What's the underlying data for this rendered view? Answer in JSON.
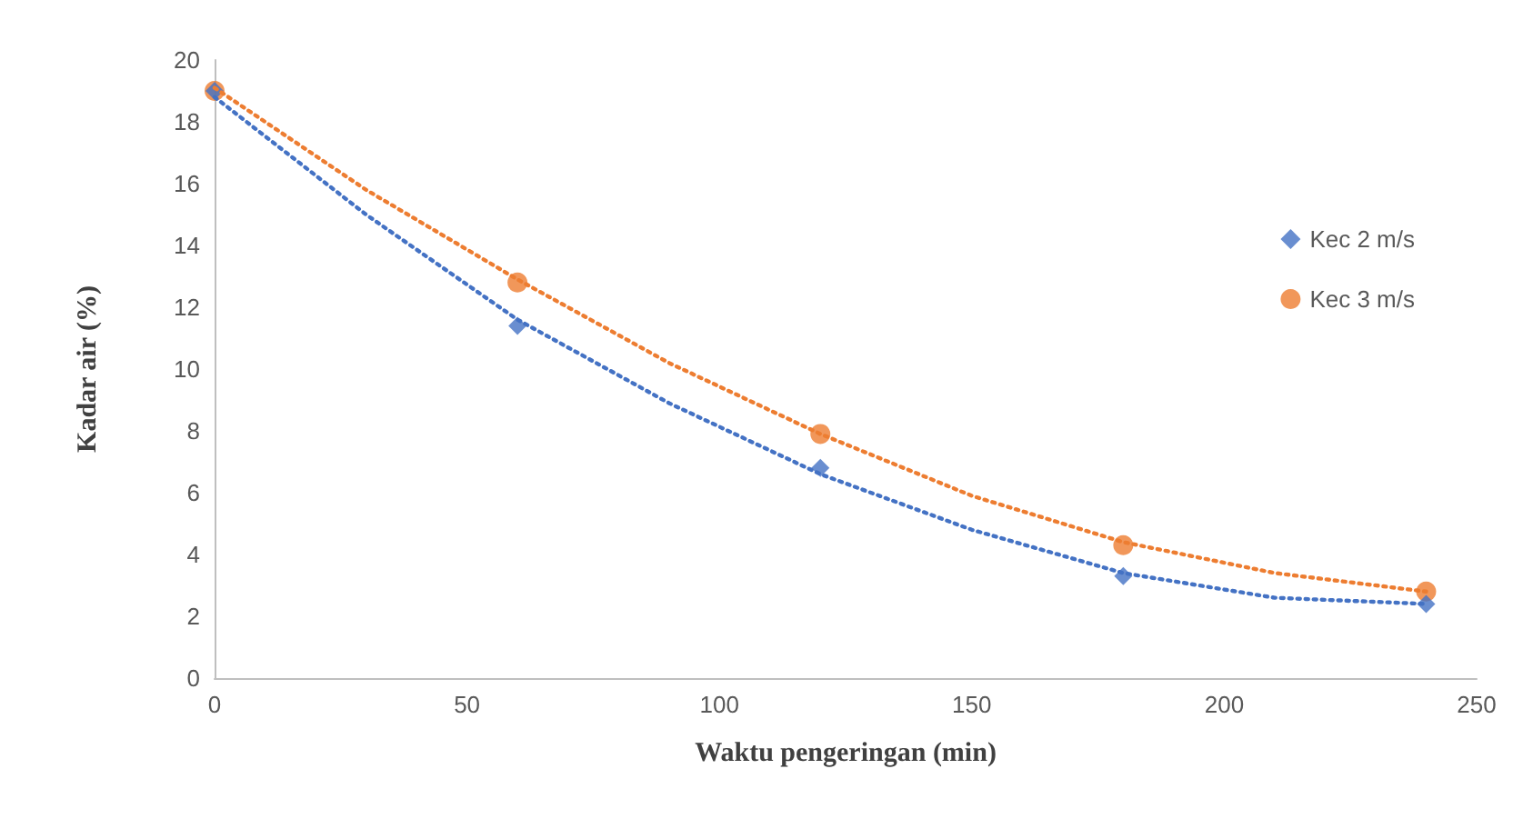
{
  "chart_data": {
    "type": "scatter",
    "xlabel": "Waktu pengeringan (min)",
    "ylabel": "Kadar air (%)",
    "xlim": [
      0,
      250
    ],
    "xticks": [
      0,
      50,
      100,
      150,
      200,
      250
    ],
    "ylim": [
      0,
      20
    ],
    "yticks": [
      0,
      2,
      4,
      6,
      8,
      10,
      12,
      14,
      16,
      18,
      20
    ],
    "grid": false,
    "legend": "right",
    "series": [
      {
        "name": "Kec 2 m/s",
        "color": "#4472c4",
        "marker": "diamond",
        "x": [
          0,
          60,
          120,
          180,
          240
        ],
        "values": [
          19,
          11.4,
          6.8,
          3.3,
          2.4
        ]
      },
      {
        "name": "Kec 3 m/s",
        "color": "#ed7d31",
        "marker": "circle",
        "x": [
          0,
          60,
          120,
          180,
          240
        ],
        "values": [
          19,
          12.8,
          7.9,
          4.3,
          2.8
        ]
      },
      {
        "type": "line",
        "color": "#4472c4",
        "marker": "none",
        "line_style": "dotted",
        "x": [
          0,
          30,
          60,
          90,
          120,
          150,
          180,
          210,
          240
        ],
        "values": [
          18.8,
          15.0,
          11.6,
          8.9,
          6.6,
          4.8,
          3.4,
          2.6,
          2.4
        ]
      },
      {
        "type": "line",
        "color": "#ed7d31",
        "marker": "none",
        "line_style": "dotted",
        "x": [
          0,
          30,
          60,
          90,
          120,
          150,
          180,
          210,
          240
        ],
        "values": [
          19.1,
          15.8,
          12.9,
          10.2,
          7.9,
          5.9,
          4.4,
          3.4,
          2.8
        ]
      }
    ]
  }
}
